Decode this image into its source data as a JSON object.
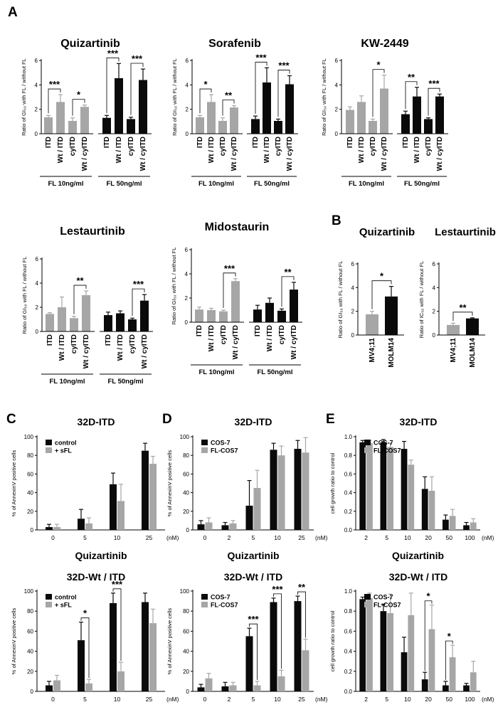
{
  "figure": {
    "panel_letters": [
      "A",
      "B",
      "C",
      "D",
      "E"
    ]
  },
  "chart_data": [
    {
      "id": "a1",
      "type": "bar",
      "title": "Quizartinib",
      "ylabel": "Ratio of GI₅₀ with FL / without FL",
      "ylim": [
        0,
        6
      ],
      "yticks": [
        0,
        2,
        4,
        6
      ],
      "categories": [
        "ITD",
        "Wt / ITD",
        "cyITD",
        "Wt / cyITD",
        "ITD",
        "Wt / ITD",
        "cyITD",
        "Wt / cyITD"
      ],
      "values": [
        1.35,
        2.6,
        1.05,
        2.2,
        1.3,
        4.55,
        1.2,
        4.4
      ],
      "errors": [
        0.15,
        0.6,
        0.25,
        0.15,
        0.2,
        1.2,
        0.15,
        0.9
      ],
      "colors": [
        "gray",
        "gray",
        "gray",
        "gray",
        "black",
        "black",
        "black",
        "black"
      ],
      "groups": [
        "FL 10ng/ml",
        "FL 50ng/ml"
      ],
      "significance": [
        {
          "from": 0,
          "to": 1,
          "label": "***"
        },
        {
          "from": 2,
          "to": 3,
          "label": "*"
        },
        {
          "from": 4,
          "to": 5,
          "label": "***"
        },
        {
          "from": 6,
          "to": 7,
          "label": "***"
        }
      ]
    },
    {
      "id": "a2",
      "type": "bar",
      "title": "Sorafenib",
      "ylabel": "Ratio of GI₅₀ with FL / without FL",
      "ylim": [
        0,
        6
      ],
      "yticks": [
        0,
        2,
        4,
        6
      ],
      "categories": [
        "ITD",
        "Wt / ITD",
        "cyITD",
        "Wt / cyITD",
        "ITD",
        "Wt / ITD",
        "cyITD",
        "Wt / cyITD"
      ],
      "values": [
        1.35,
        2.6,
        1.05,
        2.15,
        1.2,
        4.2,
        1.05,
        4.05
      ],
      "errors": [
        0.15,
        0.6,
        0.25,
        0.15,
        0.25,
        1.2,
        0.15,
        0.7
      ],
      "colors": [
        "gray",
        "gray",
        "gray",
        "gray",
        "black",
        "black",
        "black",
        "black"
      ],
      "groups": [
        "FL 10ng/ml",
        "FL 50ng/ml"
      ],
      "significance": [
        {
          "from": 0,
          "to": 1,
          "label": "*"
        },
        {
          "from": 2,
          "to": 3,
          "label": "**"
        },
        {
          "from": 4,
          "to": 5,
          "label": "***"
        },
        {
          "from": 6,
          "to": 7,
          "label": "***"
        }
      ]
    },
    {
      "id": "a3",
      "type": "bar",
      "title": "KW-2449",
      "ylabel": "Ratio of GI₅₀ with FL / without FL",
      "ylim": [
        0,
        6
      ],
      "yticks": [
        0,
        2,
        4,
        6
      ],
      "categories": [
        "ITD",
        "Wt / ITD",
        "cyITD",
        "Wt / cyITD",
        "ITD",
        "Wt / ITD",
        "cyITD",
        "Wt / cyITD"
      ],
      "values": [
        1.95,
        2.6,
        1.05,
        3.7,
        1.6,
        3.05,
        1.2,
        3.05
      ],
      "errors": [
        0.25,
        0.5,
        0.15,
        1.1,
        0.25,
        0.75,
        0.1,
        0.2
      ],
      "colors": [
        "gray",
        "gray",
        "gray",
        "gray",
        "black",
        "black",
        "black",
        "black"
      ],
      "groups": [
        "FL 10ng/ml",
        "FL 50ng/ml"
      ],
      "significance": [
        {
          "from": 2,
          "to": 3,
          "label": "*"
        },
        {
          "from": 4,
          "to": 5,
          "label": "**"
        },
        {
          "from": 6,
          "to": 7,
          "label": "***"
        }
      ]
    },
    {
      "id": "a4",
      "type": "bar",
      "title": "Lestaurtinib",
      "ylabel": "Ratio of GI₅₀ with FL / without FL",
      "ylim": [
        0,
        6
      ],
      "yticks": [
        0,
        2,
        4,
        6
      ],
      "categories": [
        "ITD",
        "Wt / ITD",
        "cyITD",
        "Wt / cyITD",
        "ITD",
        "Wt / ITD",
        "cyITD",
        "Wt / cyITD"
      ],
      "values": [
        1.45,
        2.0,
        1.1,
        3.0,
        1.35,
        1.5,
        1.0,
        2.55
      ],
      "errors": [
        0.1,
        0.85,
        0.15,
        0.35,
        0.25,
        0.2,
        0.1,
        0.5
      ],
      "colors": [
        "gray",
        "gray",
        "gray",
        "gray",
        "black",
        "black",
        "black",
        "black"
      ],
      "groups": [
        "FL 10ng/ml",
        "FL 50ng/ml"
      ],
      "significance": [
        {
          "from": 2,
          "to": 3,
          "label": "**"
        },
        {
          "from": 6,
          "to": 7,
          "label": "***"
        }
      ]
    },
    {
      "id": "a5",
      "type": "bar",
      "title": "Midostaurin",
      "ylabel": "Ratio of GI₅₀ with FL / without FL",
      "ylim": [
        0,
        6
      ],
      "yticks": [
        0,
        2,
        4,
        6
      ],
      "categories": [
        "ITD",
        "Wt / ITD",
        "cyITD",
        "Wt / cyITD",
        "ITD",
        "Wt / ITD",
        "cyITD",
        "Wt / cyITD"
      ],
      "values": [
        1.05,
        1.0,
        0.9,
        3.4,
        1.05,
        1.6,
        0.95,
        2.7
      ],
      "errors": [
        0.2,
        0.15,
        0.1,
        0.2,
        0.35,
        0.4,
        0.15,
        0.6
      ],
      "colors": [
        "gray",
        "gray",
        "gray",
        "gray",
        "black",
        "black",
        "black",
        "black"
      ],
      "groups": [
        "FL 10ng/ml",
        "FL 50ng/ml"
      ],
      "significance": [
        {
          "from": 2,
          "to": 3,
          "label": "***"
        },
        {
          "from": 6,
          "to": 7,
          "label": "**"
        }
      ]
    },
    {
      "id": "b1",
      "type": "bar",
      "title": "Quizartinib",
      "ylabel": "Ratio of GI₅₀ with FL / without FL",
      "ylim": [
        0,
        6
      ],
      "yticks": [
        0,
        2,
        4,
        6
      ],
      "categories": [
        "MV4;11",
        "MOLM14"
      ],
      "values": [
        1.75,
        3.25
      ],
      "errors": [
        0.25,
        0.85
      ],
      "colors": [
        "gray",
        "black"
      ],
      "significance": [
        {
          "from": 0,
          "to": 1,
          "label": "*"
        }
      ]
    },
    {
      "id": "b2",
      "type": "bar",
      "title": "Lestaurtinib",
      "ylabel": "Ratio of IC₅₀ with FL / without FL",
      "ylim": [
        0,
        6
      ],
      "yticks": [
        0,
        2,
        4,
        6
      ],
      "categories": [
        "MV4;11",
        "MOLM14"
      ],
      "values": [
        0.85,
        1.4
      ],
      "errors": [
        0.15,
        0.05
      ],
      "colors": [
        "gray",
        "black"
      ],
      "significance": [
        {
          "from": 0,
          "to": 1,
          "label": "**"
        }
      ]
    },
    {
      "id": "c1",
      "type": "bar",
      "title": "32D-ITD",
      "xlabel": "Quizartinib",
      "unit": "(nM)",
      "ylabel": "% of AnnexinV positive cells",
      "ylim": [
        0,
        100
      ],
      "yticks": [
        0,
        20,
        40,
        60,
        80,
        100
      ],
      "categories": [
        "0",
        "5",
        "10",
        "25"
      ],
      "series": [
        {
          "name": "control",
          "color": "black",
          "values": [
            3,
            12,
            49,
            85
          ],
          "errors": [
            3,
            10,
            12,
            8
          ]
        },
        {
          "name": "+ sFL",
          "color": "gray",
          "values": [
            3,
            7,
            31,
            71
          ],
          "errors": [
            3,
            6,
            18,
            8
          ]
        }
      ],
      "significance": []
    },
    {
      "id": "c2",
      "type": "bar",
      "title": "32D-Wt / ITD",
      "xlabel": "Quizartinib",
      "unit": "(nM)",
      "ylabel": "% of AnnexinV positive cells",
      "ylim": [
        0,
        100
      ],
      "yticks": [
        0,
        20,
        40,
        60,
        80,
        100
      ],
      "categories": [
        "0",
        "5",
        "10",
        "25"
      ],
      "series": [
        {
          "name": "control",
          "color": "black",
          "values": [
            6,
            51,
            88,
            89
          ],
          "errors": [
            4,
            18,
            10,
            9
          ]
        },
        {
          "name": "+ sFL",
          "color": "gray",
          "values": [
            11,
            8,
            20,
            68
          ],
          "errors": [
            5,
            4,
            9,
            14
          ]
        }
      ],
      "significance": [
        {
          "category": 1,
          "label": "*"
        },
        {
          "category": 2,
          "label": "***"
        }
      ]
    },
    {
      "id": "d1",
      "type": "bar",
      "title": "32D-ITD",
      "xlabel": "Quizartinib",
      "unit": "(nM)",
      "ylabel": "% of AnnexinV positive cells",
      "ylim": [
        0,
        100
      ],
      "yticks": [
        0,
        20,
        40,
        60,
        80,
        100
      ],
      "categories": [
        "0",
        "2",
        "5",
        "10",
        "25"
      ],
      "series": [
        {
          "name": "COS-7",
          "color": "black",
          "values": [
            6,
            5,
            26,
            86,
            87
          ],
          "errors": [
            4,
            3,
            27,
            7,
            9
          ]
        },
        {
          "name": "FL-COS7",
          "color": "gray",
          "values": [
            8,
            7,
            45,
            80,
            83
          ],
          "errors": [
            5,
            3,
            19,
            10,
            16
          ]
        }
      ],
      "significance": []
    },
    {
      "id": "d2",
      "type": "bar",
      "title": "32D-Wt / ITD",
      "xlabel": "Quizartinib",
      "unit": "(nM)",
      "ylabel": "% of AnnexinV positive cells",
      "ylim": [
        0,
        100
      ],
      "yticks": [
        0,
        20,
        40,
        60,
        80,
        100
      ],
      "categories": [
        "0",
        "2",
        "5",
        "10",
        "25"
      ],
      "series": [
        {
          "name": "COS-7",
          "color": "black",
          "values": [
            4,
            5,
            55,
            89,
            90
          ],
          "errors": [
            3,
            4,
            8,
            4,
            5
          ]
        },
        {
          "name": "FL-COS7",
          "color": "gray",
          "values": [
            13,
            6,
            6,
            15,
            41
          ],
          "errors": [
            5,
            3,
            4,
            6,
            11
          ]
        }
      ],
      "significance": [
        {
          "category": 2,
          "label": "***"
        },
        {
          "category": 3,
          "label": "***"
        },
        {
          "category": 4,
          "label": "**"
        }
      ]
    },
    {
      "id": "e1",
      "type": "bar",
      "title": "32D-ITD",
      "xlabel": "Quizartinib",
      "unit": "(nM)",
      "ylabel": "cell growth ratio to  control",
      "ylim": [
        0,
        1.0
      ],
      "yticks": [
        0,
        0.2,
        0.4,
        0.6,
        0.8,
        1.0
      ],
      "categories": [
        "2",
        "5",
        "10",
        "20",
        "50",
        "100"
      ],
      "series": [
        {
          "name": "COS-7",
          "color": "black",
          "values": [
            0.94,
            0.94,
            0.87,
            0.44,
            0.11,
            0.05
          ],
          "errors": [
            0.02,
            0.03,
            0.08,
            0.13,
            0.05,
            0.03
          ]
        },
        {
          "name": "FL-COS7",
          "color": "gray",
          "values": [
            0.93,
            0.89,
            0.7,
            0.42,
            0.15,
            0.08
          ],
          "errors": [
            0.03,
            0.04,
            0.05,
            0.15,
            0.07,
            0.04
          ]
        }
      ],
      "significance": []
    },
    {
      "id": "e2",
      "type": "bar",
      "title": "32D-Wt / ITD",
      "xlabel": "Quizartinib",
      "unit": "(nM)",
      "ylabel": "cell growth ratio to  control",
      "ylim": [
        0,
        1.0
      ],
      "yticks": [
        0,
        0.2,
        0.4,
        0.6,
        0.8,
        1.0
      ],
      "categories": [
        "2",
        "5",
        "10",
        "20",
        "50",
        "100"
      ],
      "series": [
        {
          "name": "COS-7",
          "color": "black",
          "values": [
            0.92,
            0.8,
            0.39,
            0.12,
            0.06,
            0.06
          ],
          "errors": [
            0.02,
            0.07,
            0.15,
            0.07,
            0.04,
            0.02
          ]
        },
        {
          "name": "FL-COS7",
          "color": "gray",
          "values": [
            0.93,
            0.78,
            0.76,
            0.62,
            0.34,
            0.19
          ],
          "errors": [
            0.05,
            0.19,
            0.22,
            0.24,
            0.12,
            0.11
          ]
        }
      ],
      "significance": [
        {
          "category": 3,
          "label": "*"
        },
        {
          "category": 4,
          "label": "*"
        }
      ]
    }
  ],
  "colors": {
    "gray": "#a6a6a6",
    "black": "#0a0a0a",
    "axis": "#000000"
  }
}
